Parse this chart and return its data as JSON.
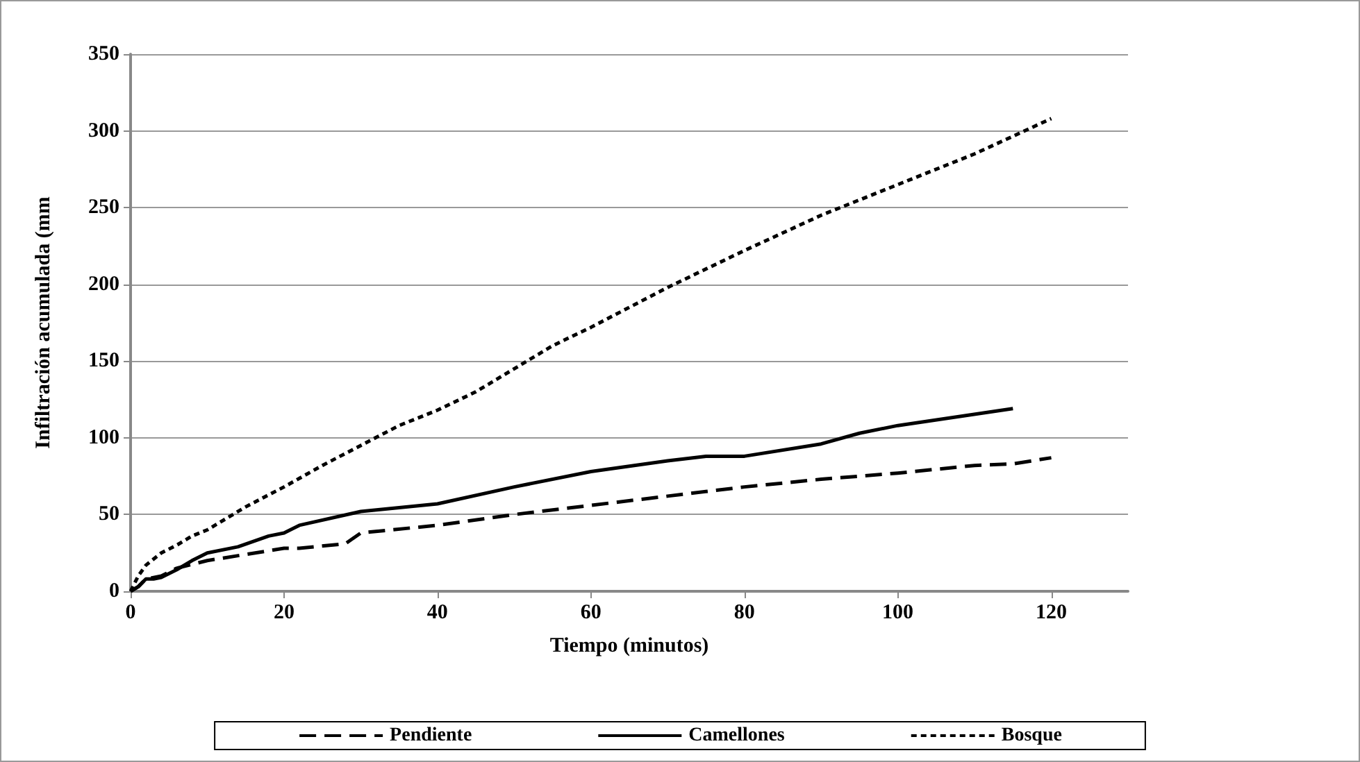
{
  "chart_data": {
    "type": "line",
    "xlabel": "Tiempo (minutos)",
    "ylabel": "Infiltración acumulada (mm",
    "xlim": [
      0,
      130
    ],
    "xticks": [
      0,
      20,
      40,
      60,
      80,
      100,
      120
    ],
    "ylim": [
      0,
      350
    ],
    "yticks": [
      0,
      50,
      100,
      150,
      200,
      250,
      300,
      350
    ],
    "grid": "y",
    "legend": "bottom",
    "marker": "none",
    "series": [
      {
        "name": "Pendiente",
        "color": "#000000",
        "line_style": "dashed",
        "x": [
          0,
          1,
          2,
          4,
          6,
          10,
          15,
          20,
          22,
          28,
          30,
          40,
          50,
          60,
          70,
          80,
          90,
          100,
          110,
          115,
          120
        ],
        "values": [
          0,
          3,
          8,
          10,
          15,
          20,
          24,
          28,
          28,
          31,
          38,
          43,
          50,
          56,
          62,
          68,
          73,
          77,
          82,
          83,
          87
        ]
      },
      {
        "name": "Camellones",
        "color": "#000000",
        "line_style": "solid",
        "x": [
          0,
          1,
          2,
          3,
          4,
          6,
          8,
          10,
          14,
          18,
          20,
          22,
          30,
          40,
          50,
          60,
          70,
          75,
          80,
          90,
          95,
          100,
          115
        ],
        "values": [
          0,
          3,
          8,
          8,
          9,
          14,
          20,
          25,
          29,
          36,
          38,
          43,
          52,
          57,
          68,
          78,
          85,
          88,
          88,
          96,
          103,
          108,
          119
        ]
      },
      {
        "name": "Bosque",
        "color": "#000000",
        "line_style": "dotted",
        "x": [
          0,
          1,
          2,
          4,
          6,
          8,
          10,
          15,
          20,
          25,
          30,
          35,
          40,
          45,
          50,
          55,
          60,
          65,
          70,
          75,
          80,
          90,
          100,
          110,
          120
        ],
        "values": [
          0,
          10,
          17,
          25,
          30,
          36,
          40,
          55,
          68,
          82,
          95,
          108,
          118,
          130,
          145,
          160,
          172,
          185,
          198,
          210,
          222,
          245,
          265,
          285,
          308
        ]
      }
    ]
  }
}
